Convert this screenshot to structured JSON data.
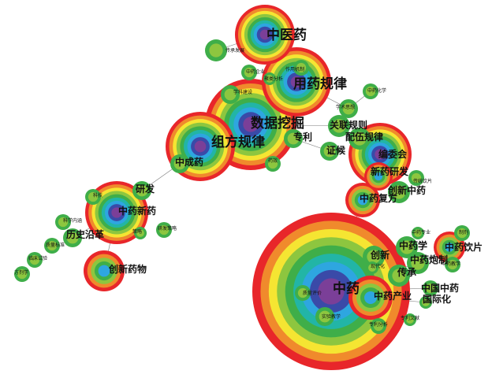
{
  "ring_colors": [
    "#e8262a",
    "#f08a2c",
    "#f5e532",
    "#8dc63f",
    "#3fae49",
    "#22b5a6",
    "#2ea6e0",
    "#3a4aa8",
    "#7b3f98"
  ],
  "edge_color": "#7a7a7a",
  "nodes": [
    {
      "id": "zhongyao",
      "label": "中药"
    },
    {
      "id": "zhongyiyao",
      "label": "中医药"
    },
    {
      "id": "yongyaoguilv",
      "label": "用药规律"
    },
    {
      "id": "shujuwajue",
      "label": "数据挖掘"
    },
    {
      "id": "zufangguilv",
      "label": "组方规律"
    },
    {
      "id": "zhuanli",
      "label": "专利"
    },
    {
      "id": "zhongyaoxinyao",
      "label": "中药新药"
    },
    {
      "id": "chuangxinyaowu",
      "label": "创新药物"
    },
    {
      "id": "zhongchengyao",
      "label": "中成药"
    },
    {
      "id": "yanfa",
      "label": "研发"
    },
    {
      "id": "lishiyange",
      "label": "历史沿革"
    },
    {
      "id": "guanlianguize",
      "label": "关联规则"
    },
    {
      "id": "peiwuguilv",
      "label": "配伍规律"
    },
    {
      "id": "bianweihui",
      "label": "编委会"
    },
    {
      "id": "xinyaoyanfa",
      "label": "新药研发"
    },
    {
      "id": "chuangxinzhongyao",
      "label": "创新中药"
    },
    {
      "id": "zhongyaofufang",
      "label": "中药复方"
    },
    {
      "id": "zhongyaoxue",
      "label": "中药学"
    },
    {
      "id": "chuangxin",
      "label": "创新"
    },
    {
      "id": "zhongyaopaozhi",
      "label": "中药炮制"
    },
    {
      "id": "zhongyaoyinpian",
      "label": "中药饮片"
    },
    {
      "id": "chuancheng",
      "label": "传承"
    },
    {
      "id": "zhongyaochanye",
      "label": "中药产业"
    },
    {
      "id": "zhongguozhongyao",
      "label": "中国中药"
    },
    {
      "id": "guojihua",
      "label": "国际化"
    },
    {
      "id": "zhengxing",
      "label": "证候"
    },
    {
      "id": "chuanchengfazhan",
      "label": "传承发展"
    },
    {
      "id": "zhongyaoqiye",
      "label": "中药企业"
    },
    {
      "id": "xuekejianshe",
      "label": "学科建设"
    },
    {
      "id": "zuoyongjizhi",
      "label": "作用机制"
    },
    {
      "id": "juleifenxi",
      "label": "聚类分析"
    },
    {
      "id": "zhongyaohuaxue",
      "label": "中药化学"
    },
    {
      "id": "xueshusixiang",
      "label": "学术思想"
    },
    {
      "id": "chuantongyinpian",
      "label": "传统饮片"
    },
    {
      "id": "zhongyaozhuanye",
      "label": "中药专业"
    },
    {
      "id": "zhongyaojiaoxue",
      "label": "中药教学"
    },
    {
      "id": "zhuanlifenxi",
      "label": "专利分析"
    },
    {
      "id": "zhuanliwenxian",
      "label": "专利文献"
    },
    {
      "id": "shiyanjiaoxue",
      "label": "实验教学"
    },
    {
      "id": "zhiliangpingjia",
      "label": "质量评价"
    },
    {
      "id": "xiandaihua",
      "label": "现代化"
    },
    {
      "id": "yanfacelve",
      "label": "研发策略"
    },
    {
      "id": "celve",
      "label": "策略"
    },
    {
      "id": "keji",
      "label": "科技"
    },
    {
      "id": "kexueneihan",
      "label": "科学内涵"
    },
    {
      "id": "zhiliangbiaozhun",
      "label": "质量标准"
    },
    {
      "id": "yaoyonggaoliang",
      "label": "临床试验"
    },
    {
      "id": "fangjishu",
      "label": "方剂学"
    },
    {
      "id": "yaoxiao",
      "label": "药效"
    },
    {
      "id": "zhiji",
      "label": "制剂"
    }
  ]
}
